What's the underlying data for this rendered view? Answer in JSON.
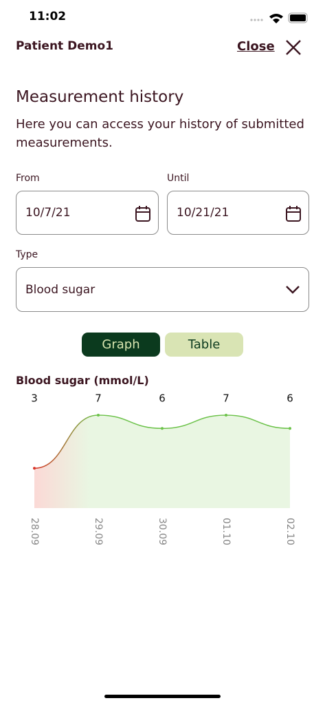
{
  "status_bar": {
    "time": "11:02"
  },
  "header": {
    "patient": "Patient Demo1",
    "close": "Close"
  },
  "page": {
    "title": "Measurement history",
    "description": "Here you can access your history of submitted measurements."
  },
  "filters": {
    "from_label": "From",
    "from_value": "10/7/21",
    "until_label": "Until",
    "until_value": "10/21/21",
    "type_label": "Type",
    "type_value": "Blood sugar"
  },
  "tabs": {
    "graph": "Graph",
    "table": "Table"
  },
  "chart_data": {
    "type": "line",
    "title": "Blood sugar (mmol/L)",
    "categories": [
      "28.09",
      "29.09",
      "30.09",
      "01.10",
      "02.10"
    ],
    "values": [
      3,
      7,
      6,
      7,
      6
    ]
  }
}
